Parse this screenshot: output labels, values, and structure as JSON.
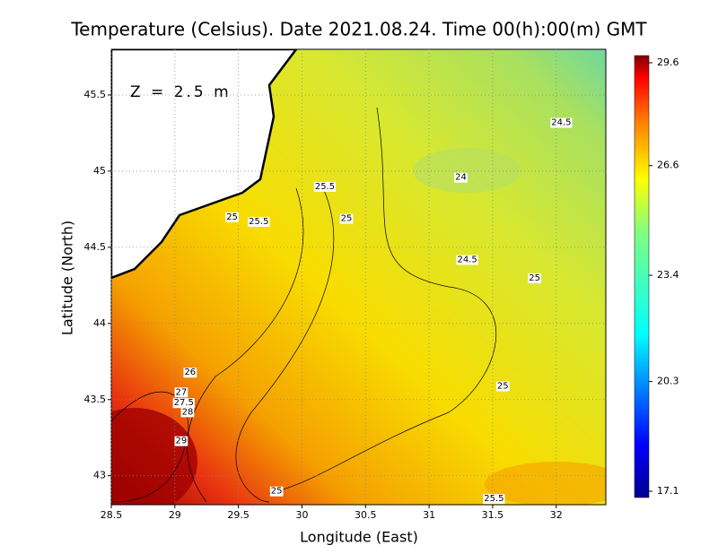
{
  "chart_data": {
    "type": "contour-map",
    "title": "Temperature (Celsius). Date 2021.08.24. Time 00(h):00(m) GMT",
    "annotation": "Z = 2.5 m",
    "x_label": "Longitude (East)",
    "y_label": "Latitude (North)",
    "xlim": [
      28.5,
      32.39
    ],
    "ylim": [
      42.81,
      45.8
    ],
    "xticks": [
      28.5,
      29,
      29.5,
      30,
      30.5,
      31,
      31.5,
      32
    ],
    "yticks": [
      43,
      43.5,
      44,
      44.5,
      45,
      45.5
    ],
    "grid": true,
    "colorbar_ticks": [
      17.1,
      20.3,
      23.4,
      26.6,
      29.6
    ],
    "contour_labels": [
      {
        "value": 24.5,
        "lon": 32.04,
        "lat": 45.32
      },
      {
        "value": 25.5,
        "lon": 30.18,
        "lat": 44.9
      },
      {
        "value": 24,
        "lon": 31.25,
        "lat": 44.96
      },
      {
        "value": 25,
        "lon": 30.35,
        "lat": 44.69
      },
      {
        "value": 25,
        "lon": 29.45,
        "lat": 44.7
      },
      {
        "value": 25.5,
        "lon": 29.66,
        "lat": 44.67
      },
      {
        "value": 24.5,
        "lon": 31.3,
        "lat": 44.42
      },
      {
        "value": 25,
        "lon": 31.83,
        "lat": 44.3
      },
      {
        "value": 25,
        "lon": 31.58,
        "lat": 43.59
      },
      {
        "value": 26,
        "lon": 29.12,
        "lat": 43.68
      },
      {
        "value": 27,
        "lon": 29.05,
        "lat": 43.55
      },
      {
        "value": 27.5,
        "lon": 29.07,
        "lat": 43.48
      },
      {
        "value": 28,
        "lon": 29.1,
        "lat": 43.42
      },
      {
        "value": 29,
        "lon": 29.05,
        "lat": 43.23
      },
      {
        "value": 25,
        "lon": 29.8,
        "lat": 42.9
      },
      {
        "value": 25.5,
        "lon": 31.51,
        "lat": 42.85
      }
    ]
  }
}
